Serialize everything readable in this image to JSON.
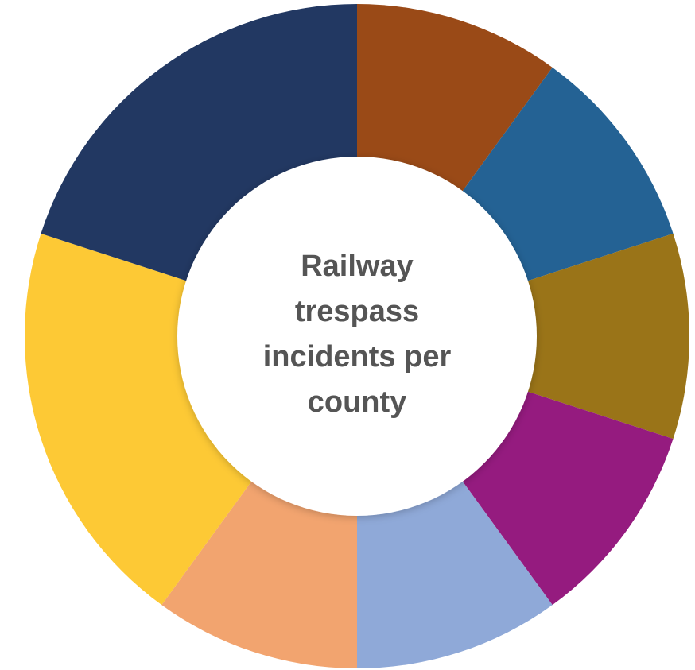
{
  "chart_data": {
    "type": "pie",
    "donut": true,
    "title_lines": [
      "Railway",
      "trespass",
      "incidents per",
      "county"
    ],
    "slices": [
      {
        "value": 10,
        "color": "#9A4A17"
      },
      {
        "value": 10,
        "color": "#246294"
      },
      {
        "value": 10,
        "color": "#9A7418"
      },
      {
        "value": 10,
        "color": "#951B7F"
      },
      {
        "value": 10,
        "color": "#8FA9D8"
      },
      {
        "value": 10,
        "color": "#F2A46F"
      },
      {
        "value": 20,
        "color": "#FDC935"
      },
      {
        "value": 20,
        "color": "#223862"
      }
    ],
    "start_angle_deg": 0,
    "direction": "clockwise",
    "legend": "none"
  }
}
